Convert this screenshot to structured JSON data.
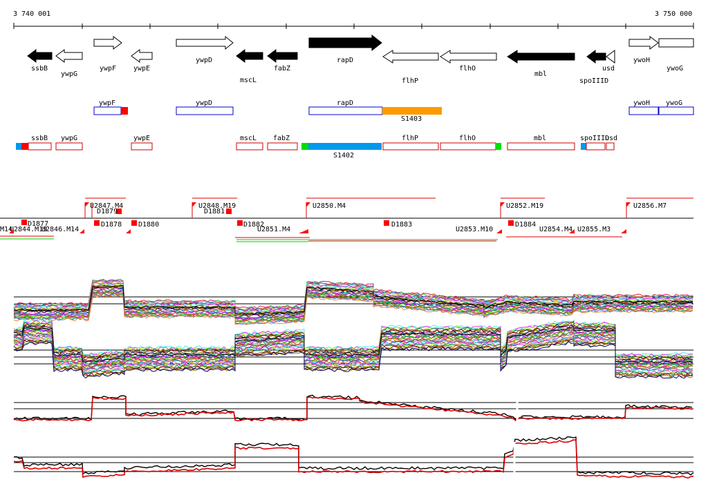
{
  "coords": {
    "start": "3 740 001",
    "end": "3 750 000"
  },
  "genes": [
    {
      "name": "ssbB",
      "strand": "-",
      "filled": true
    },
    {
      "name": "ywpG",
      "strand": "-",
      "filled": false
    },
    {
      "name": "ywpF",
      "strand": "+",
      "filled": false
    },
    {
      "name": "ywpE",
      "strand": "-",
      "filled": false
    },
    {
      "name": "ywpD",
      "strand": "+",
      "filled": false
    },
    {
      "name": "mscL",
      "strand": "-",
      "filled": true
    },
    {
      "name": "fabZ",
      "strand": "-",
      "filled": true
    },
    {
      "name": "rapD",
      "strand": "+",
      "filled": true
    },
    {
      "name": "flhP",
      "strand": "-",
      "filled": false
    },
    {
      "name": "flhO",
      "strand": "-",
      "filled": false
    },
    {
      "name": "mbl",
      "strand": "-",
      "filled": true
    },
    {
      "name": "spoIIID",
      "strand": "-",
      "filled": true
    },
    {
      "name": "usd",
      "strand": "-",
      "filled": false
    },
    {
      "name": "ywoH",
      "strand": "+",
      "filled": false
    },
    {
      "name": "ywoG",
      "strand": "+",
      "filled": false
    }
  ],
  "plus_track": {
    "boxes": [
      "ywpF",
      "ywpD",
      "rapD",
      "ywoH",
      "ywoG"
    ],
    "segment": "S1403",
    "colors": {
      "box": "#0000cc",
      "segment": "#ff9900",
      "marker": "#ff0000"
    }
  },
  "minus_track": {
    "boxes": [
      "ssbB",
      "ywpG",
      "ywpE",
      "mscL",
      "fabZ",
      "flhP",
      "flhO",
      "mbl",
      "spoIIID",
      "usd"
    ],
    "segment": "S1402",
    "colors": {
      "box": "#cc0000",
      "segment": "#0099ee",
      "start": "#00dd00"
    }
  },
  "features": [
    "U2848.M19",
    "U2850.M4",
    "U2852.M19",
    "U2856.M7",
    "D1881",
    "U2844.M19",
    "U2846.M14",
    "D1877",
    "D1878",
    "D1879",
    "D1880",
    "D1882",
    "D1883",
    "D1884",
    "U2853.M10",
    "U2854.M4",
    "U2855.M3",
    "U2851.M4",
    "M14",
    "U2847.M4"
  ],
  "colors": {
    "up": "#cc0000",
    "profile_black": "#000000",
    "profile_red": "#dd0000"
  }
}
